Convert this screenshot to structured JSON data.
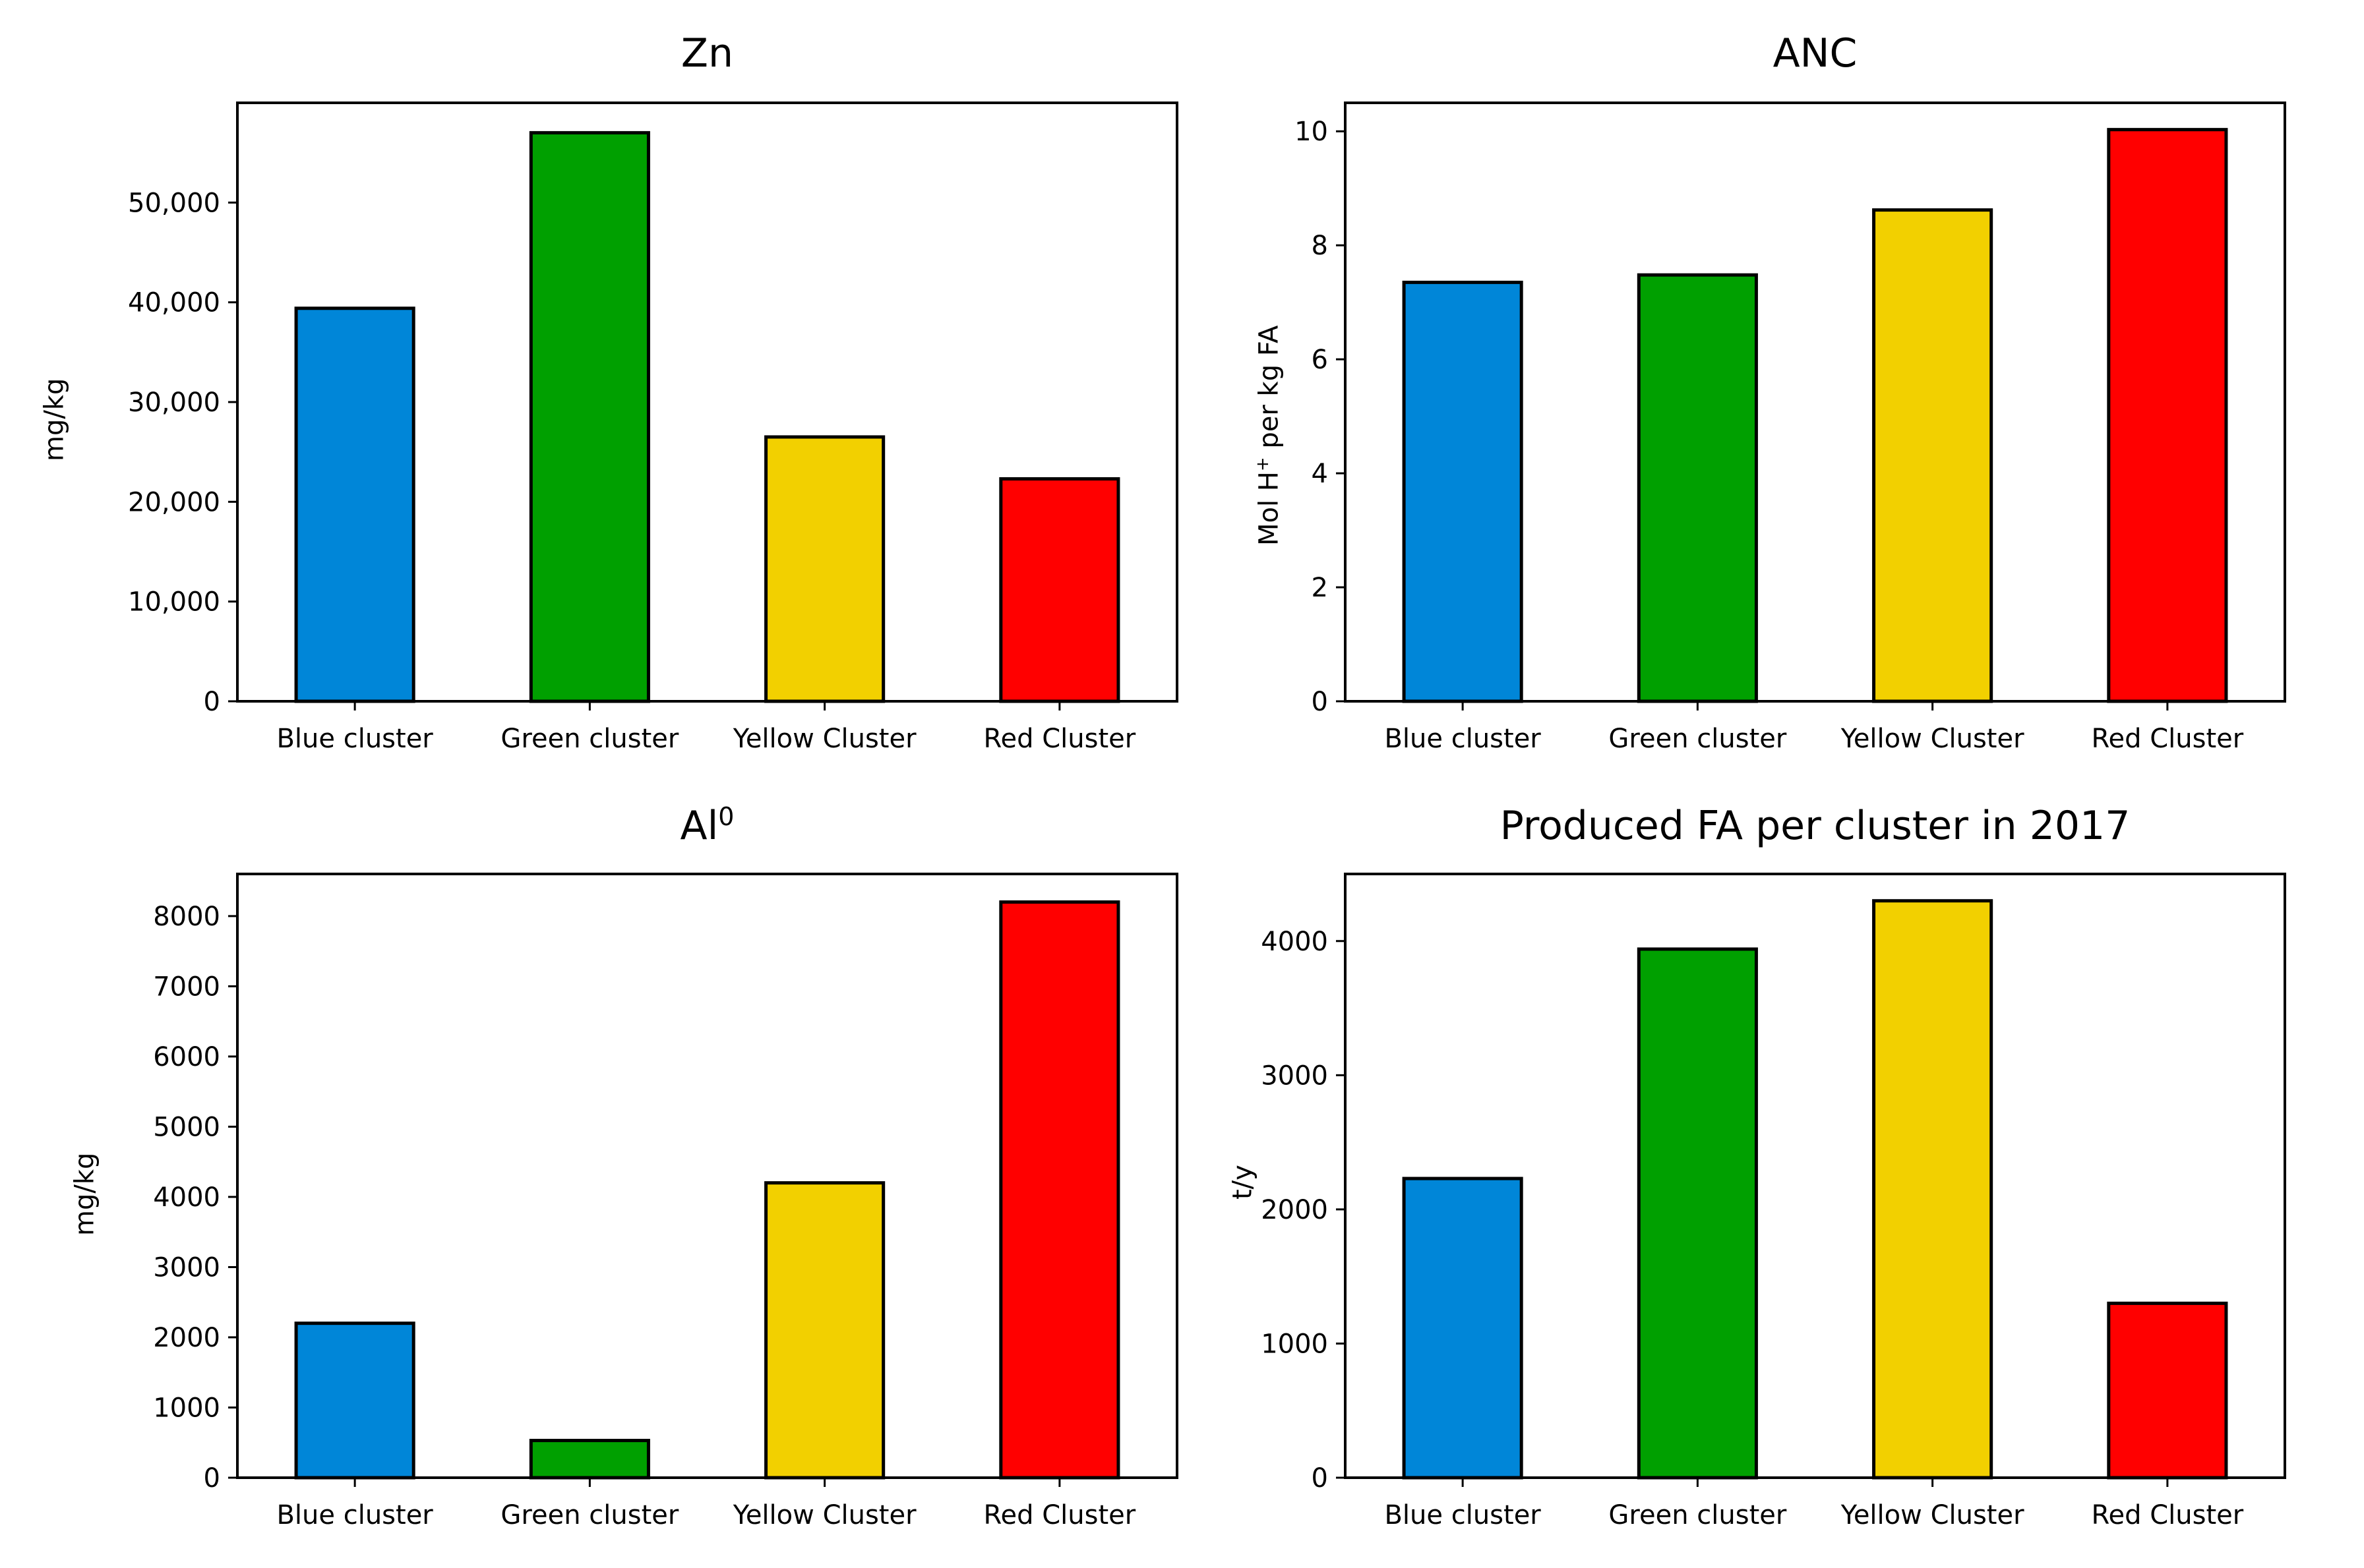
{
  "chart_data": [
    {
      "id": "zn",
      "type": "bar",
      "title": "Zn",
      "title_sup": "",
      "xlabel": "",
      "ylabel": "mg/kg",
      "ylabel_sup": "",
      "ylabel_after": "",
      "categories": [
        "Blue cluster",
        "Green cluster",
        "Yellow Cluster",
        "Red Cluster"
      ],
      "values": [
        39400,
        57000,
        26500,
        22300
      ],
      "colors": [
        "#0086d8",
        "#00a000",
        "#f2d000",
        "#ff0000"
      ],
      "ylim": [
        0,
        60000
      ],
      "yticks": [
        0,
        10000,
        20000,
        30000,
        40000,
        50000
      ],
      "tick_format": "comma"
    },
    {
      "id": "anc",
      "type": "bar",
      "title": "ANC",
      "title_sup": "",
      "xlabel": "",
      "ylabel": "Mol H",
      "ylabel_sup": "+",
      "ylabel_after": " per kg FA",
      "categories": [
        "Blue cluster",
        "Green cluster",
        "Yellow Cluster",
        "Red Cluster"
      ],
      "values": [
        7.35,
        7.48,
        8.62,
        10.03
      ],
      "colors": [
        "#0086d8",
        "#00a000",
        "#f2d000",
        "#ff0000"
      ],
      "ylim": [
        0,
        10.5
      ],
      "yticks": [
        0,
        2,
        4,
        6,
        8,
        10
      ],
      "tick_format": "plain"
    },
    {
      "id": "al",
      "type": "bar",
      "title": "Al",
      "title_sup": "0",
      "xlabel": "",
      "ylabel": "mg/kg",
      "ylabel_sup": "",
      "ylabel_after": "",
      "categories": [
        "Blue cluster",
        "Green cluster",
        "Yellow Cluster",
        "Red Cluster"
      ],
      "values": [
        2200,
        530,
        4200,
        8200
      ],
      "colors": [
        "#0086d8",
        "#00a000",
        "#f2d000",
        "#ff0000"
      ],
      "ylim": [
        0,
        8600
      ],
      "yticks": [
        0,
        1000,
        2000,
        3000,
        4000,
        5000,
        6000,
        7000,
        8000
      ],
      "tick_format": "plain"
    },
    {
      "id": "fa",
      "type": "bar",
      "title": "Produced FA per cluster in 2017",
      "title_sup": "",
      "xlabel": "",
      "ylabel": "t/y",
      "ylabel_sup": "",
      "ylabel_after": "",
      "categories": [
        "Blue cluster",
        "Green cluster",
        "Yellow Cluster",
        "Red Cluster"
      ],
      "values": [
        2230,
        3940,
        4300,
        1300
      ],
      "colors": [
        "#0086d8",
        "#00a000",
        "#f2d000",
        "#ff0000"
      ],
      "ylim": [
        0,
        4500
      ],
      "yticks": [
        0,
        1000,
        2000,
        3000,
        4000
      ],
      "tick_format": "plain"
    }
  ]
}
